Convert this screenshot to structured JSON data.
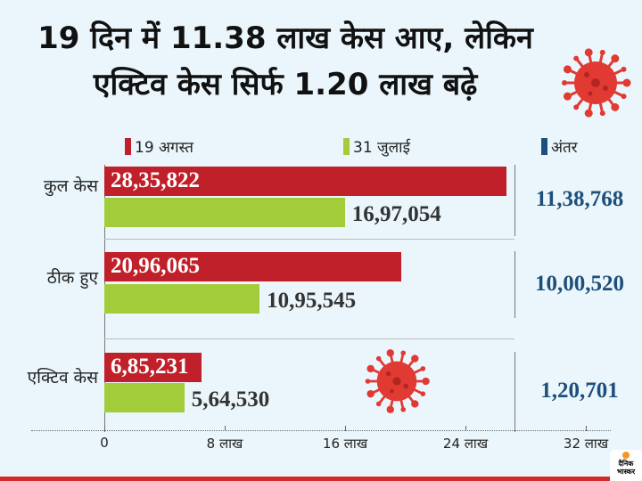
{
  "title": {
    "line1": "19 दिन में 11.38 लाख केस आए, लेकिन",
    "line2": "एक्टिव केस सिर्फ 1.20 लाख बढ़े"
  },
  "colors": {
    "aug": "#c0202a",
    "jul": "#a3cc3a",
    "diff": "#1d4f7c"
  },
  "chart_data": {
    "type": "bar",
    "title": "19 दिन में 11.38 लाख केस आए, लेकिन एक्टिव केस सिर्फ 1.20 लाख बढ़े",
    "categories": [
      "कुल केस",
      "ठीक हुए",
      "एक्टिव केस"
    ],
    "series": [
      {
        "name": "19 अगस्त",
        "values": [
          2835822,
          2096065,
          685231
        ],
        "labels": [
          "28,35,822",
          "20,96,065",
          "6,85,231"
        ]
      },
      {
        "name": "31 जुलाई",
        "values": [
          1697054,
          1095545,
          564530
        ],
        "labels": [
          "16,97,054",
          "10,95,545",
          "5,64,530"
        ]
      }
    ],
    "diff_title": "अंतर",
    "diff": [
      "11,38,768",
      "10,00,520",
      "1,20,701"
    ],
    "xticks": [
      0,
      800000,
      1600000,
      2400000,
      3200000
    ],
    "xtick_labels": [
      "0",
      "8 लाख",
      "16 लाख",
      "24 लाख",
      "32 लाख"
    ],
    "xlim": [
      0,
      3200000
    ],
    "legend": "top"
  },
  "logo": "दैनिक भास्कर"
}
